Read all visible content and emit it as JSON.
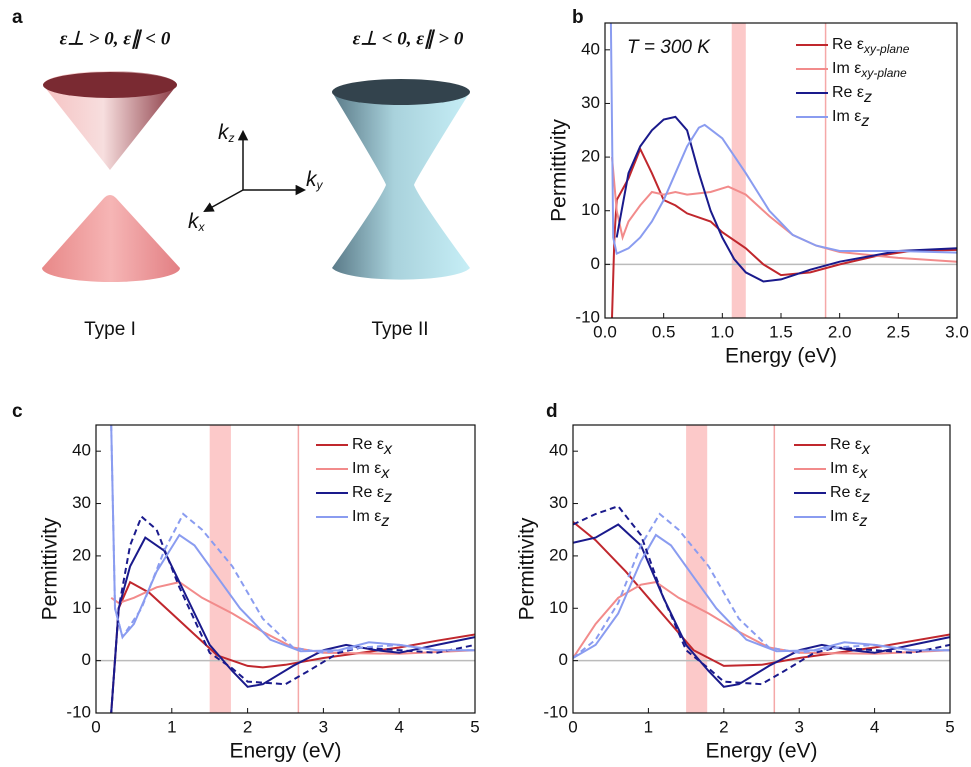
{
  "panel_a": {
    "label": "a",
    "left_title": "ε⊥ > 0, ε∥ < 0",
    "right_title": "ε⊥ < 0, ε∥ > 0",
    "left_caption": "Type I",
    "right_caption": "Type II",
    "axes": [
      {
        "base": "k",
        "sub": "z"
      },
      {
        "base": "k",
        "sub": "y"
      },
      {
        "base": "k",
        "sub": "x"
      }
    ]
  },
  "chart_data": [
    {
      "type": "line",
      "label": "b",
      "xlabel": "Energy (eV)",
      "ylabel": "Permittivity",
      "annotation": "T = 300 K",
      "xlim": [
        0,
        3
      ],
      "ylim": [
        -10,
        45
      ],
      "xticks": [
        {
          "value": 0,
          "label": "0.0"
        },
        0.5,
        {
          "value": 1,
          "label": "1.0"
        },
        1.5,
        {
          "value": 2,
          "label": "2.0"
        },
        2.5,
        {
          "value": 3,
          "label": "3.0"
        }
      ],
      "yticks": [
        -10,
        0,
        10,
        20,
        30,
        40
      ],
      "shaded_band": [
        1.08,
        1.2
      ],
      "marker_line": 1.88,
      "legend": "upper right",
      "series": [
        {
          "name": "Re ε",
          "subscript": "xy-plane",
          "color": "#c0272d",
          "x": [
            0.06,
            0.08,
            0.1,
            0.2,
            0.3,
            0.4,
            0.5,
            0.6,
            0.7,
            0.9,
            1.0,
            1.2,
            1.35,
            1.5,
            1.75,
            2.0,
            2.3,
            2.6,
            3.0
          ],
          "values": [
            -10,
            5,
            12,
            16,
            21.5,
            17,
            12,
            11,
            9.5,
            8,
            6,
            3,
            0,
            -2,
            -1.5,
            0,
            1.5,
            2.5,
            2.7
          ]
        },
        {
          "name": "Im ε",
          "subscript": "xy-plane",
          "color": "#f28b8b",
          "x": [
            0.06,
            0.1,
            0.15,
            0.2,
            0.3,
            0.4,
            0.5,
            0.6,
            0.7,
            0.9,
            1.05,
            1.2,
            1.4,
            1.6,
            1.8,
            2.0,
            2.5,
            3.0
          ],
          "values": [
            20,
            10,
            5,
            8,
            11,
            13.5,
            13,
            13.5,
            13,
            13.5,
            14.5,
            13,
            9,
            5.5,
            3.5,
            2.3,
            1.2,
            0.5
          ]
        },
        {
          "name": "Re ε",
          "subscript": "z",
          "color": "#1a1a8c",
          "x": [
            0.1,
            0.2,
            0.3,
            0.4,
            0.5,
            0.6,
            0.7,
            0.8,
            0.9,
            1.0,
            1.1,
            1.2,
            1.35,
            1.5,
            1.75,
            2.0,
            2.5,
            3.0
          ],
          "values": [
            5,
            17,
            22,
            25,
            27,
            27.5,
            25,
            17,
            10,
            5,
            1,
            -1.5,
            -3.2,
            -2.8,
            -1,
            0.5,
            2.5,
            3
          ]
        },
        {
          "name": "Im ε",
          "subscript": "z",
          "color": "#8a9cf0",
          "x": [
            0.05,
            0.07,
            0.1,
            0.2,
            0.3,
            0.4,
            0.5,
            0.6,
            0.7,
            0.8,
            0.85,
            1.0,
            1.2,
            1.4,
            1.6,
            1.8,
            2.0,
            2.5,
            3.0
          ],
          "values": [
            45,
            5,
            2,
            3,
            5,
            8,
            12,
            17,
            22,
            25.5,
            26,
            23.5,
            17,
            10,
            5.5,
            3.5,
            2.5,
            2.5,
            2.2
          ]
        }
      ]
    },
    {
      "type": "line",
      "label": "c",
      "xlabel": "Energy (eV)",
      "ylabel": "Permittivity",
      "xlim": [
        0,
        5
      ],
      "ylim": [
        -10,
        45
      ],
      "xticks": [
        0,
        1,
        2,
        3,
        4,
        5
      ],
      "yticks": [
        -10,
        0,
        10,
        20,
        30,
        40
      ],
      "shaded_band": [
        1.5,
        1.78
      ],
      "marker_line": 2.67,
      "legend": "upper right",
      "series": [
        {
          "name": "Re ε",
          "subscript": "x",
          "color": "#c0272d",
          "x": [
            0.2,
            0.3,
            0.45,
            0.7,
            1,
            1.3,
            1.6,
            2,
            2.2,
            2.5,
            3,
            3.5,
            4,
            4.5,
            5
          ],
          "values": [
            -10,
            10,
            15,
            13,
            9,
            5,
            1,
            -1,
            -1.3,
            -0.8,
            0.5,
            1.5,
            2.5,
            3.8,
            5
          ]
        },
        {
          "name": "Im ε",
          "subscript": "x",
          "color": "#f28b8b",
          "x": [
            0.2,
            0.3,
            0.5,
            0.8,
            1.1,
            1.4,
            1.8,
            2.2,
            2.6,
            3,
            4,
            5
          ],
          "values": [
            12,
            11,
            12,
            14,
            15,
            12,
            9,
            5.5,
            2.5,
            1.5,
            1.3,
            2
          ]
        },
        {
          "name": "Re ε",
          "subscript": "z",
          "color": "#1a1a8c",
          "x": [
            0.2,
            0.3,
            0.45,
            0.65,
            0.9,
            1.2,
            1.5,
            1.8,
            2.0,
            2.2,
            2.6,
            3,
            3.3,
            3.7,
            4,
            4.5,
            5
          ],
          "values": [
            -10,
            10,
            18,
            23.5,
            21,
            12,
            3,
            -2,
            -5,
            -4.5,
            -1,
            2,
            3,
            2,
            1.5,
            3,
            4.5
          ]
        },
        {
          "name": "Im ε",
          "subscript": "z",
          "color": "#8a9cf0",
          "x": [
            0.2,
            0.25,
            0.35,
            0.5,
            0.8,
            1.1,
            1.3,
            1.6,
            1.9,
            2.3,
            2.7,
            3.2,
            3.6,
            4,
            4.5,
            5
          ],
          "values": [
            45,
            10,
            4.5,
            7,
            17,
            24,
            22,
            16,
            10,
            4,
            1.8,
            2,
            3.5,
            3,
            2,
            2
          ]
        },
        {
          "dashed": true,
          "color": "#1a1a8c",
          "x": [
            0.2,
            0.3,
            0.45,
            0.6,
            0.8,
            1.1,
            1.5,
            1.8,
            2.0,
            2.5,
            2.8,
            3.2,
            3.5,
            4,
            4.5,
            5
          ],
          "values": [
            -10,
            10,
            22,
            27.5,
            25,
            14,
            1.5,
            -1.5,
            -4,
            -4.5,
            -2,
            1.5,
            2.5,
            2,
            1.5,
            3
          ]
        },
        {
          "dashed": true,
          "color": "#8a9cf0",
          "x": [
            0.2,
            0.25,
            0.35,
            0.6,
            0.9,
            1.15,
            1.4,
            1.8,
            2.2,
            2.6,
            3,
            3.5,
            4,
            4.5,
            5
          ],
          "values": [
            45,
            10,
            4.5,
            10,
            21,
            28,
            25,
            18,
            8,
            2.5,
            1.5,
            2.5,
            3,
            2,
            2
          ]
        }
      ]
    },
    {
      "type": "line",
      "label": "d",
      "xlabel": "Energy (eV)",
      "ylabel": "Permittivity",
      "xlim": [
        0,
        5
      ],
      "ylim": [
        -10,
        45
      ],
      "xticks": [
        0,
        1,
        2,
        3,
        4,
        5
      ],
      "yticks": [
        -10,
        0,
        10,
        20,
        30,
        40
      ],
      "shaded_band": [
        1.5,
        1.78
      ],
      "marker_line": 2.67,
      "legend": "upper right",
      "series": [
        {
          "name": "Re ε",
          "subscript": "x",
          "color": "#c0272d",
          "x": [
            0,
            0.3,
            0.7,
            1,
            1.3,
            1.6,
            2,
            2.5,
            3,
            4,
            5
          ],
          "values": [
            26.5,
            23,
            17,
            12,
            7,
            2,
            -1,
            -0.8,
            0.5,
            2.5,
            5
          ]
        },
        {
          "name": "Im ε",
          "subscript": "x",
          "color": "#f28b8b",
          "x": [
            0,
            0.3,
            0.6,
            0.9,
            1.1,
            1.4,
            1.8,
            2.2,
            2.6,
            3,
            4,
            5
          ],
          "values": [
            0.5,
            7,
            12,
            14.5,
            15,
            12,
            9,
            5.5,
            2.5,
            1.5,
            1.3,
            2
          ]
        },
        {
          "name": "Re ε",
          "subscript": "z",
          "color": "#1a1a8c",
          "x": [
            0,
            0.3,
            0.6,
            0.9,
            1.2,
            1.5,
            1.8,
            2,
            2.2,
            2.6,
            3,
            3.3,
            3.7,
            4,
            4.5,
            5
          ],
          "values": [
            22.5,
            23.5,
            26,
            22,
            12,
            3,
            -2,
            -5,
            -4.5,
            -1,
            2,
            3,
            2,
            1.5,
            3,
            4.5
          ]
        },
        {
          "name": "Im ε",
          "subscript": "z",
          "color": "#8a9cf0",
          "x": [
            0,
            0.3,
            0.6,
            0.9,
            1.1,
            1.3,
            1.6,
            1.9,
            2.3,
            2.7,
            3.2,
            3.6,
            4,
            4.5,
            5
          ],
          "values": [
            0.5,
            3,
            9,
            19,
            24,
            22,
            16,
            10,
            4,
            1.8,
            2,
            3.5,
            3,
            2,
            2
          ]
        },
        {
          "dashed": true,
          "color": "#1a1a8c",
          "x": [
            0,
            0.3,
            0.6,
            0.9,
            1.2,
            1.5,
            1.8,
            2,
            2.5,
            2.8,
            3.2,
            3.5,
            4,
            4.5,
            5
          ],
          "values": [
            26,
            28,
            29.5,
            24,
            12,
            2,
            -1.5,
            -4,
            -4.5,
            -2,
            1.5,
            2.5,
            2,
            1.5,
            3
          ]
        },
        {
          "dashed": true,
          "color": "#8a9cf0",
          "x": [
            0,
            0.3,
            0.6,
            0.9,
            1.15,
            1.4,
            1.8,
            2.2,
            2.6,
            3,
            3.5,
            4,
            4.5,
            5
          ],
          "values": [
            0.5,
            4,
            11,
            22,
            28,
            25,
            18,
            8,
            2.5,
            1.5,
            2.5,
            3,
            2,
            2
          ]
        }
      ]
    }
  ]
}
